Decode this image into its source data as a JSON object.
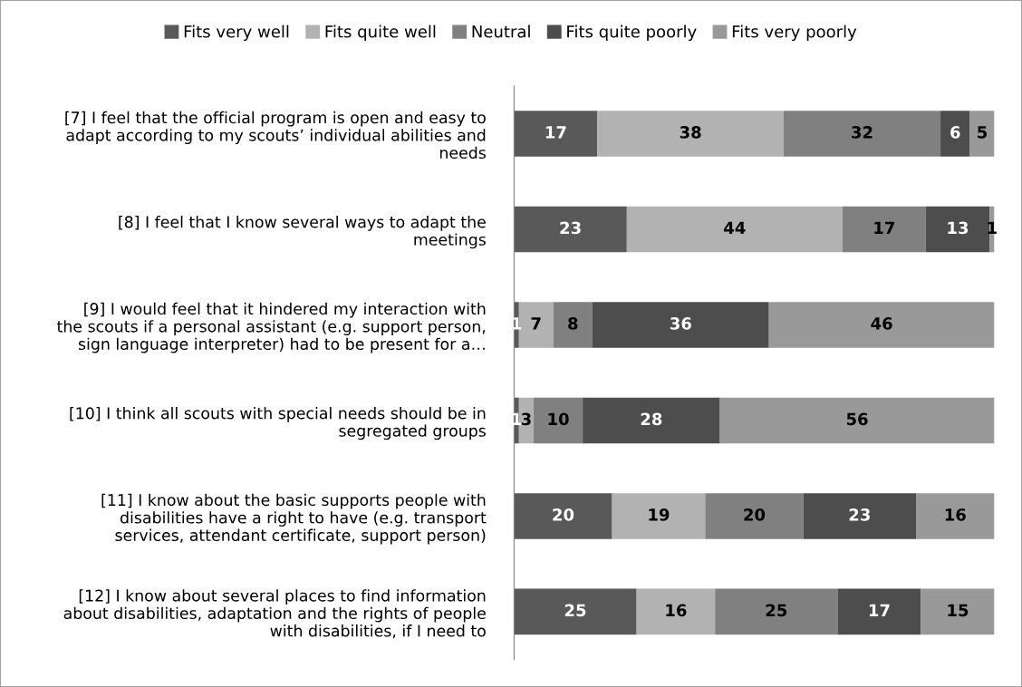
{
  "chart_data": {
    "type": "bar",
    "orientation": "horizontal",
    "stacked": true,
    "data_labels": true,
    "legend": "top",
    "grid": false,
    "tick_labels": "y",
    "categories": [
      "[7] I feel that the official program is open and easy to\nadapt according to my scouts’ individual abilities and\nneeds",
      "[8] I feel that I know several ways to adapt the\nmeetings",
      "[9] I would feel that it hindered my interaction with\nthe scouts if a personal assistant (e.g. support person,\nsign language interpreter) had to be present for a…",
      "[10] I think all scouts with special needs should be in\nsegregated groups",
      "[11] I know about the basic supports people with\ndisabilities have a right to have (e.g. transport\nservices, attendant certificate, support person)",
      "[12] I know about several places to find information\nabout disabilities, adaptation and the rights of people\nwith disabilities, if I need to"
    ],
    "series": [
      {
        "name": "Fits very well",
        "color": "#595959",
        "values": [
          17,
          23,
          1,
          1,
          20,
          25
        ]
      },
      {
        "name": "Fits quite well",
        "color": "#b2b2b2",
        "values": [
          38,
          44,
          7,
          3,
          19,
          16
        ]
      },
      {
        "name": "Neutral",
        "color": "#808080",
        "values": [
          32,
          17,
          8,
          10,
          20,
          25
        ]
      },
      {
        "name": "Fits quite poorly",
        "color": "#4d4d4d",
        "values": [
          6,
          13,
          36,
          28,
          23,
          17
        ]
      },
      {
        "name": "Fits very poorly",
        "color": "#999999",
        "values": [
          5,
          1,
          46,
          56,
          16,
          15
        ]
      }
    ]
  }
}
